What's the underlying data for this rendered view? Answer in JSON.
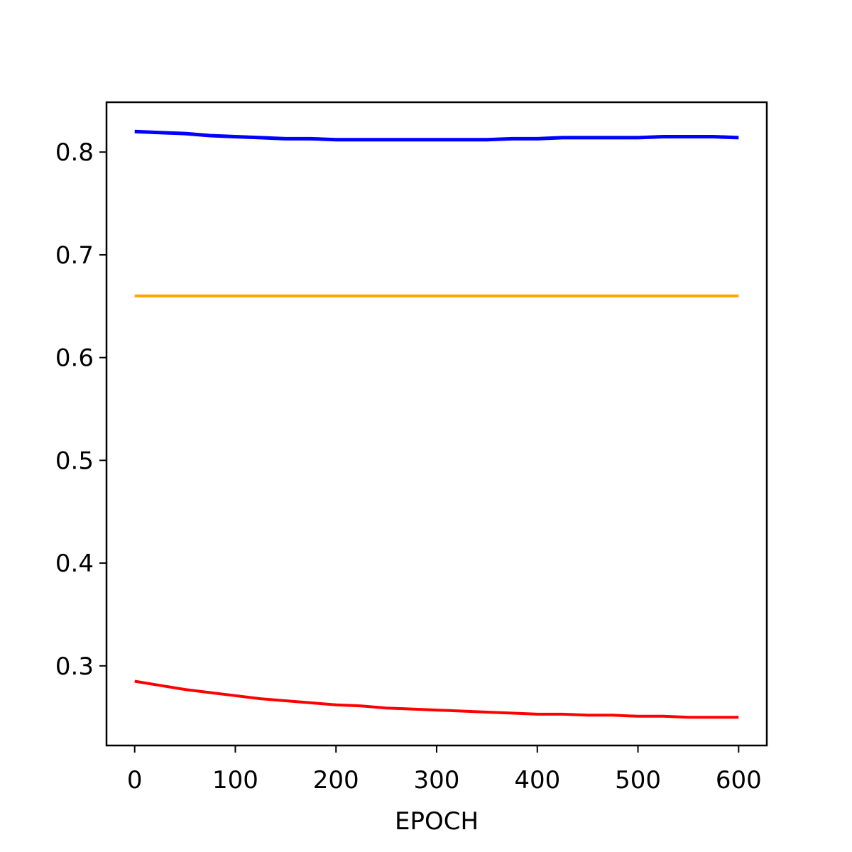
{
  "chart_data": {
    "type": "line",
    "title": "",
    "xlabel": "EPOCH",
    "ylabel": "",
    "xlim": [
      -28,
      628
    ],
    "ylim": [
      0.2225,
      0.8485
    ],
    "x_ticks": [
      0,
      100,
      200,
      300,
      400,
      500,
      600
    ],
    "y_ticks": [
      0.3,
      0.4,
      0.5,
      0.6,
      0.7,
      0.8
    ],
    "x_tick_labels": [
      "0",
      "100",
      "200",
      "300",
      "400",
      "500",
      "600"
    ],
    "y_tick_labels": [
      "0.3",
      "0.4",
      "0.5",
      "0.6",
      "0.7",
      "0.8"
    ],
    "grid": false,
    "legend": "none",
    "series": [
      {
        "color": "#0000ff",
        "x": [
          0,
          25,
          50,
          75,
          100,
          125,
          150,
          175,
          200,
          225,
          250,
          275,
          300,
          325,
          350,
          375,
          400,
          425,
          450,
          475,
          500,
          525,
          550,
          575,
          600
        ],
        "y": [
          0.82,
          0.819,
          0.818,
          0.816,
          0.815,
          0.814,
          0.813,
          0.813,
          0.812,
          0.812,
          0.812,
          0.812,
          0.812,
          0.812,
          0.812,
          0.813,
          0.813,
          0.814,
          0.814,
          0.814,
          0.814,
          0.815,
          0.815,
          0.815,
          0.814
        ]
      },
      {
        "color": "#ffa500",
        "x": [
          0,
          600
        ],
        "y": [
          0.66,
          0.66
        ]
      },
      {
        "color": "#ff0000",
        "x": [
          0,
          25,
          50,
          75,
          100,
          125,
          150,
          175,
          200,
          225,
          250,
          275,
          300,
          325,
          350,
          375,
          400,
          425,
          450,
          475,
          500,
          525,
          550,
          575,
          600
        ],
        "y": [
          0.285,
          0.281,
          0.277,
          0.274,
          0.271,
          0.268,
          0.266,
          0.264,
          0.262,
          0.261,
          0.259,
          0.258,
          0.257,
          0.256,
          0.255,
          0.254,
          0.253,
          0.253,
          0.252,
          0.252,
          0.251,
          0.251,
          0.25,
          0.25,
          0.25
        ]
      }
    ]
  }
}
